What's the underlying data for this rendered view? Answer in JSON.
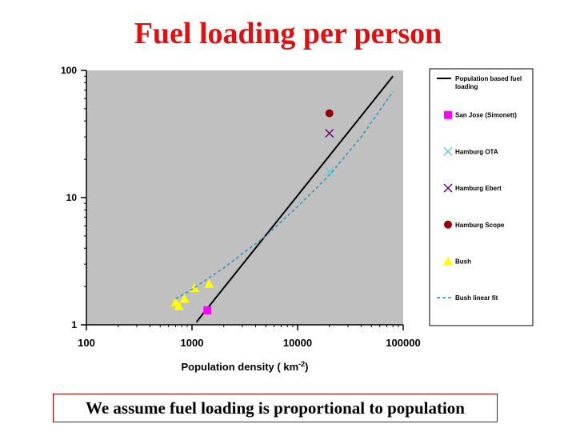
{
  "slide": {
    "title": "Fuel loading per person",
    "caption": "We assume fuel loading is proportional to population"
  },
  "colors": {
    "title": "#dd1111",
    "plot_bg": "#c0c0c0",
    "fit_line": "#000000",
    "san_jose": "#ff00ff",
    "hamburg_ota": "#5ccfd6",
    "hamburg_ebert": "#660066",
    "hamburg_scope": "#990000",
    "bush": "#ffff00",
    "bush_fit": "#3399bb"
  },
  "chart_data": {
    "type": "scatter",
    "title": "",
    "xlabel": "Population density ( km",
    "xlabel_sup": "-2",
    "xlabel_end": ")",
    "ylabel": "",
    "xscale": "log",
    "yscale": "log",
    "xlim": [
      100,
      100000
    ],
    "ylim": [
      1,
      100
    ],
    "x_ticks": [
      "100",
      "1000",
      "10000",
      "100000"
    ],
    "y_ticks": [
      "1",
      "10",
      "100"
    ],
    "grid": false,
    "legend_position": "right",
    "series": [
      {
        "name": "Population based fuel loading",
        "kind": "line",
        "color": "#000000",
        "x": [
          1100,
          80000
        ],
        "y": [
          1.05,
          90
        ]
      },
      {
        "name": "San Jose (Simonett)",
        "kind": "square",
        "color": "#ff00ff",
        "x": [
          1400
        ],
        "y": [
          1.3
        ]
      },
      {
        "name": "Hamburg OTA",
        "kind": "x",
        "color": "#5ccfd6",
        "x": [
          20000
        ],
        "y": [
          16
        ]
      },
      {
        "name": "Hamburg Ebert",
        "kind": "x",
        "color": "#660066",
        "x": [
          20000
        ],
        "y": [
          32
        ]
      },
      {
        "name": "Hamburg Scope",
        "kind": "circle",
        "color": "#990000",
        "x": [
          20000
        ],
        "y": [
          46
        ]
      },
      {
        "name": "Bush",
        "kind": "triangle",
        "color": "#ffff00",
        "x": [
          700,
          750,
          850,
          1050,
          1450
        ],
        "y": [
          1.5,
          1.4,
          1.6,
          1.95,
          2.1
        ]
      },
      {
        "name": "Bush linear fit",
        "kind": "dashed",
        "color": "#3399bb",
        "x": [
          700,
          1000,
          2000,
          5000,
          10000,
          20000,
          40000,
          80000
        ],
        "y": [
          1.6,
          1.9,
          2.8,
          5.0,
          8.5,
          15,
          30,
          68
        ]
      }
    ]
  }
}
